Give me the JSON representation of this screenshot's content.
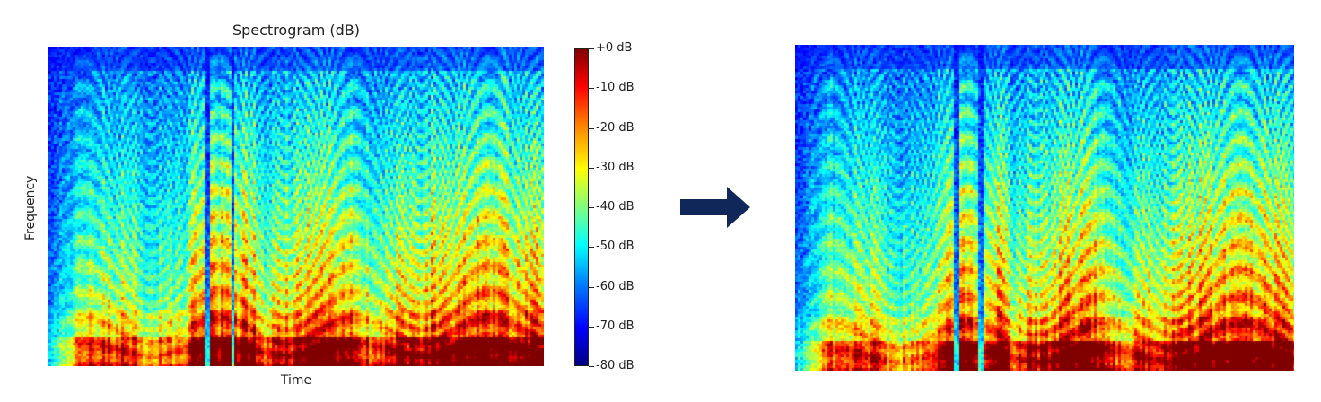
{
  "left_chart": {
    "title": "Spectrogram (dB)",
    "xlabel": "Time",
    "ylabel": "Frequency"
  },
  "colorbar": {
    "ticks": [
      "+0 dB",
      "-10 dB",
      "-20 dB",
      "-30 dB",
      "-40 dB",
      "-50 dB",
      "-60 dB",
      "-70 dB",
      "-80 dB"
    ],
    "range_db": [
      -80,
      0
    ],
    "colormap": "jet"
  },
  "colors": {
    "arrow": "#10275a",
    "spectrogram_background": "#0a0a8a"
  },
  "icons": {
    "transform_arrow": "right-arrow-icon"
  }
}
